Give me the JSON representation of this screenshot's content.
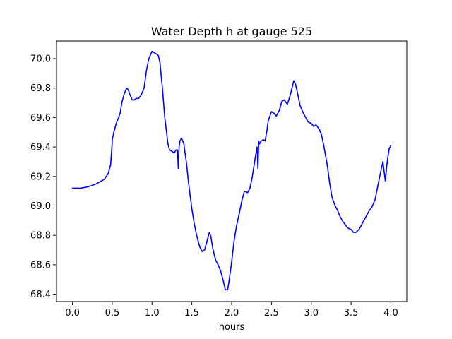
{
  "chart_data": {
    "type": "line",
    "title": "Water Depth h at gauge 525",
    "xlabel": "hours",
    "ylabel": "",
    "xlim": [
      -0.2,
      4.2
    ],
    "ylim": [
      68.35,
      70.12
    ],
    "xticks": [
      0.0,
      0.5,
      1.0,
      1.5,
      2.0,
      2.5,
      3.0,
      3.5,
      4.0
    ],
    "xtick_labels": [
      "0.0",
      "0.5",
      "1.0",
      "1.5",
      "2.0",
      "2.5",
      "3.0",
      "3.5",
      "4.0"
    ],
    "yticks": [
      68.4,
      68.6,
      68.8,
      69.0,
      69.2,
      69.4,
      69.6,
      69.8,
      70.0
    ],
    "ytick_labels": [
      "68.4",
      "68.6",
      "68.8",
      "69.0",
      "69.2",
      "69.4",
      "69.6",
      "69.8",
      "70.0"
    ],
    "grid": false,
    "legend": null,
    "series": [
      {
        "color": "#0000ff",
        "x": [
          0.0,
          0.1,
          0.2,
          0.3,
          0.4,
          0.45,
          0.48,
          0.5,
          0.5,
          0.52,
          0.55,
          0.58,
          0.6,
          0.62,
          0.65,
          0.68,
          0.7,
          0.72,
          0.75,
          0.78,
          0.8,
          0.83,
          0.86,
          0.9,
          0.93,
          0.96,
          1.0,
          1.03,
          1.06,
          1.08,
          1.1,
          1.13,
          1.16,
          1.2,
          1.22,
          1.25,
          1.28,
          1.3,
          1.32,
          1.33,
          1.34,
          1.35,
          1.37,
          1.4,
          1.43,
          1.46,
          1.5,
          1.53,
          1.56,
          1.6,
          1.63,
          1.66,
          1.7,
          1.72,
          1.74,
          1.76,
          1.78,
          1.8,
          1.83,
          1.86,
          1.9,
          1.92,
          1.95,
          1.97,
          2.0,
          2.03,
          2.06,
          2.1,
          2.13,
          2.16,
          2.2,
          2.23,
          2.26,
          2.3,
          2.32,
          2.33,
          2.34,
          2.35,
          2.37,
          2.4,
          2.42,
          2.44,
          2.46,
          2.5,
          2.53,
          2.56,
          2.6,
          2.63,
          2.66,
          2.7,
          2.74,
          2.78,
          2.8,
          2.83,
          2.86,
          2.9,
          2.93,
          2.96,
          3.0,
          3.03,
          3.06,
          3.1,
          3.13,
          3.16,
          3.2,
          3.23,
          3.26,
          3.3,
          3.33,
          3.36,
          3.4,
          3.43,
          3.46,
          3.5,
          3.53,
          3.56,
          3.6,
          3.63,
          3.66,
          3.7,
          3.73,
          3.76,
          3.8,
          3.83,
          3.86,
          3.9,
          3.93,
          3.95,
          3.96,
          3.97,
          3.98,
          3.99,
          4.0
        ],
        "y": [
          69.12,
          69.12,
          69.13,
          69.15,
          69.18,
          69.22,
          69.28,
          69.43,
          69.45,
          69.5,
          69.56,
          69.6,
          69.63,
          69.7,
          69.76,
          69.8,
          69.79,
          69.76,
          69.72,
          69.72,
          69.73,
          69.73,
          69.75,
          69.8,
          69.92,
          70.0,
          70.05,
          70.04,
          70.03,
          70.02,
          69.97,
          69.8,
          69.6,
          69.42,
          69.38,
          69.37,
          69.36,
          69.38,
          69.38,
          69.25,
          69.4,
          69.44,
          69.46,
          69.42,
          69.3,
          69.15,
          68.98,
          68.88,
          68.8,
          68.72,
          68.69,
          68.7,
          68.78,
          68.82,
          68.79,
          68.72,
          68.67,
          68.63,
          68.6,
          68.56,
          68.48,
          68.43,
          68.43,
          68.5,
          68.62,
          68.76,
          68.86,
          68.96,
          69.04,
          69.1,
          69.09,
          69.12,
          69.2,
          69.34,
          69.4,
          69.25,
          69.44,
          69.42,
          69.44,
          69.45,
          69.44,
          69.5,
          69.58,
          69.64,
          69.63,
          69.61,
          69.65,
          69.71,
          69.72,
          69.69,
          69.76,
          69.85,
          69.83,
          69.76,
          69.68,
          69.63,
          69.6,
          69.57,
          69.56,
          69.54,
          69.55,
          69.52,
          69.48,
          69.4,
          69.28,
          69.16,
          69.06,
          69.0,
          68.97,
          68.93,
          68.89,
          68.87,
          68.85,
          68.84,
          68.82,
          68.82,
          68.84,
          68.87,
          68.9,
          68.94,
          68.97,
          68.99,
          69.04,
          69.12,
          69.2,
          69.3,
          69.17,
          69.28,
          69.32,
          69.36,
          69.39,
          69.4,
          69.41
        ]
      }
    ]
  }
}
